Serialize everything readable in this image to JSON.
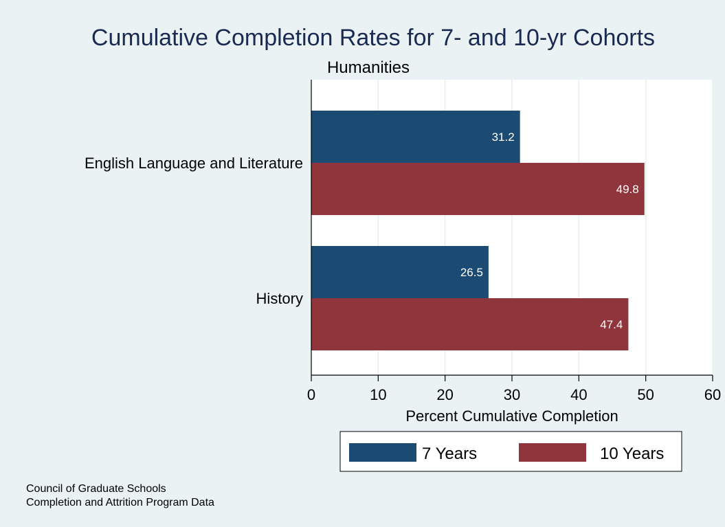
{
  "chart_data": {
    "type": "bar",
    "orientation": "horizontal",
    "title": "Cumulative Completion Rates for 7- and 10-yr Cohorts",
    "subtitle": "Humanities",
    "categories": [
      "English Language and Literature",
      "History"
    ],
    "series": [
      {
        "name": "7 Years",
        "values": [
          31.2,
          26.5
        ],
        "color": "#1b4a73"
      },
      {
        "name": "10 Years",
        "values": [
          49.8,
          47.4
        ],
        "color": "#90353b"
      }
    ],
    "data_labels": [
      [
        "31.2",
        "26.5"
      ],
      [
        "49.8",
        "47.4"
      ]
    ],
    "xlabel": "Percent Cumulative Completion",
    "ylabel": "",
    "xlim": [
      0,
      60
    ],
    "xticks": [
      0,
      10,
      20,
      30,
      40,
      50,
      60
    ],
    "grid": true,
    "legend_placement": "bottom"
  },
  "notes": [
    "Council of Graduate Schools",
    "Completion and Attrition Program Data"
  ],
  "colors": {
    "background": "#eaf2f3",
    "plot_background": "#ffffff",
    "gridline": "#e6eef0",
    "title": "#1b2a52"
  }
}
